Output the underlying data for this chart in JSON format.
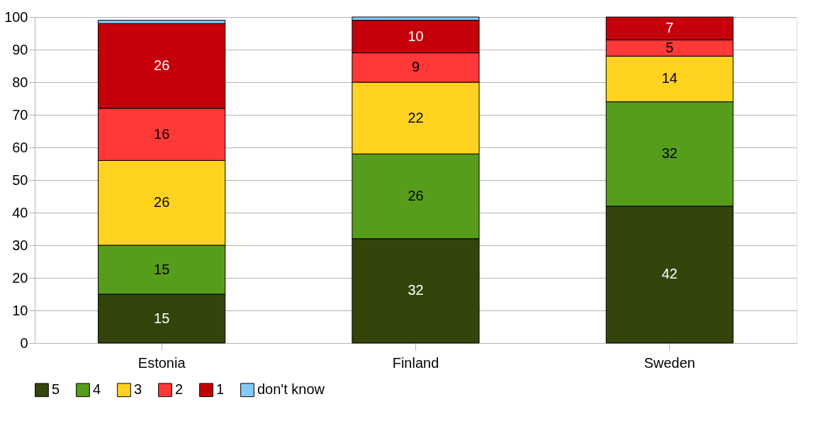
{
  "chart_data": {
    "type": "bar",
    "stacked": true,
    "categories": [
      "Estonia",
      "Finland",
      "Sweden"
    ],
    "series": [
      {
        "name": "5",
        "color": "#33450a",
        "values": [
          15,
          32,
          42
        ],
        "value_labels": [
          "15",
          "32",
          "42"
        ]
      },
      {
        "name": "4",
        "color": "#579d1c",
        "values": [
          15,
          26,
          32
        ],
        "value_labels": [
          "15",
          "26",
          "32"
        ]
      },
      {
        "name": "3",
        "color": "#ffd320",
        "values": [
          26,
          22,
          14
        ],
        "value_labels": [
          "26",
          "22",
          "14"
        ]
      },
      {
        "name": "2",
        "color": "#ff3838",
        "values": [
          16,
          9,
          5
        ],
        "value_labels": [
          "16",
          "9",
          "5"
        ]
      },
      {
        "name": "1",
        "color": "#c5000b",
        "values": [
          26,
          10,
          7
        ],
        "value_labels": [
          "26",
          "10",
          "7"
        ]
      },
      {
        "name": "don't know",
        "color": "#83caff",
        "values": [
          1,
          1,
          null
        ],
        "value_labels": [
          null,
          null,
          null
        ]
      }
    ],
    "ylim": [
      0,
      100
    ],
    "yticks": [
      0,
      10,
      20,
      30,
      40,
      50,
      60,
      70,
      80,
      90,
      100
    ],
    "grid": "y",
    "legend": "bottom"
  }
}
